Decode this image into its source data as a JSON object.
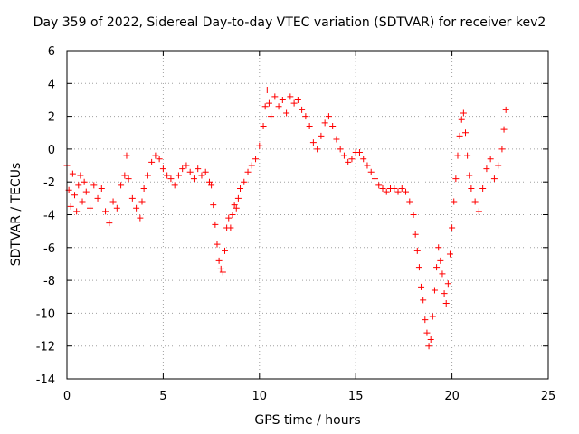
{
  "chart_data": {
    "type": "scatter",
    "title": "Day 359 of 2022, Sidereal Day-to-day VTEC variation (SDTVAR) for receiver kev2",
    "xlabel": "GPS time / hours",
    "ylabel": "SDTVAR / TECUs",
    "xlim": [
      0,
      25
    ],
    "ylim": [
      -14,
      6
    ],
    "xticks": [
      "0",
      "5",
      "10",
      "15",
      "20",
      "25"
    ],
    "yticks": [
      "6",
      "4",
      "2",
      "0",
      "-2",
      "-4",
      "-6",
      "-8",
      "-10",
      "-12",
      "-14"
    ],
    "grid": true,
    "marker": "+",
    "color": "#ff0000",
    "series": [
      {
        "name": "SDTVAR",
        "points": [
          [
            0.0,
            -1.0
          ],
          [
            0.1,
            -2.5
          ],
          [
            0.2,
            -3.5
          ],
          [
            0.3,
            -1.5
          ],
          [
            0.4,
            -2.8
          ],
          [
            0.5,
            -3.8
          ],
          [
            0.6,
            -2.2
          ],
          [
            0.7,
            -1.6
          ],
          [
            0.8,
            -3.2
          ],
          [
            0.9,
            -2.0
          ],
          [
            1.0,
            -2.6
          ],
          [
            1.2,
            -3.6
          ],
          [
            1.4,
            -2.2
          ],
          [
            1.6,
            -3.0
          ],
          [
            1.8,
            -2.4
          ],
          [
            2.0,
            -3.8
          ],
          [
            2.2,
            -4.5
          ],
          [
            2.4,
            -3.2
          ],
          [
            2.6,
            -3.6
          ],
          [
            2.8,
            -2.2
          ],
          [
            3.0,
            -1.6
          ],
          [
            3.1,
            -0.4
          ],
          [
            3.2,
            -1.8
          ],
          [
            3.4,
            -3.0
          ],
          [
            3.6,
            -3.6
          ],
          [
            3.8,
            -4.2
          ],
          [
            3.9,
            -3.2
          ],
          [
            4.0,
            -2.4
          ],
          [
            4.2,
            -1.6
          ],
          [
            4.4,
            -0.8
          ],
          [
            4.6,
            -0.4
          ],
          [
            4.8,
            -0.6
          ],
          [
            5.0,
            -1.2
          ],
          [
            5.2,
            -1.6
          ],
          [
            5.4,
            -1.8
          ],
          [
            5.6,
            -2.2
          ],
          [
            5.8,
            -1.6
          ],
          [
            6.0,
            -1.2
          ],
          [
            6.2,
            -1.0
          ],
          [
            6.4,
            -1.4
          ],
          [
            6.6,
            -1.8
          ],
          [
            6.8,
            -1.2
          ],
          [
            7.0,
            -1.6
          ],
          [
            7.2,
            -1.4
          ],
          [
            7.4,
            -2.0
          ],
          [
            7.5,
            -2.2
          ],
          [
            7.6,
            -3.4
          ],
          [
            7.7,
            -4.6
          ],
          [
            7.8,
            -5.8
          ],
          [
            7.9,
            -6.8
          ],
          [
            8.0,
            -7.3
          ],
          [
            8.1,
            -7.5
          ],
          [
            8.2,
            -6.2
          ],
          [
            8.3,
            -4.8
          ],
          [
            8.4,
            -4.2
          ],
          [
            8.5,
            -4.8
          ],
          [
            8.6,
            -4.0
          ],
          [
            8.7,
            -3.4
          ],
          [
            8.8,
            -3.6
          ],
          [
            8.9,
            -3.0
          ],
          [
            9.0,
            -2.4
          ],
          [
            9.2,
            -2.0
          ],
          [
            9.4,
            -1.4
          ],
          [
            9.6,
            -1.0
          ],
          [
            9.8,
            -0.6
          ],
          [
            10.0,
            0.2
          ],
          [
            10.2,
            1.4
          ],
          [
            10.3,
            2.6
          ],
          [
            10.4,
            3.6
          ],
          [
            10.5,
            2.8
          ],
          [
            10.6,
            2.0
          ],
          [
            10.8,
            3.2
          ],
          [
            11.0,
            2.6
          ],
          [
            11.2,
            3.0
          ],
          [
            11.4,
            2.2
          ],
          [
            11.6,
            3.2
          ],
          [
            11.8,
            2.8
          ],
          [
            12.0,
            3.0
          ],
          [
            12.2,
            2.4
          ],
          [
            12.4,
            2.0
          ],
          [
            12.6,
            1.4
          ],
          [
            12.8,
            0.4
          ],
          [
            13.0,
            0.0
          ],
          [
            13.2,
            0.8
          ],
          [
            13.4,
            1.6
          ],
          [
            13.6,
            2.0
          ],
          [
            13.8,
            1.4
          ],
          [
            14.0,
            0.6
          ],
          [
            14.2,
            0.0
          ],
          [
            14.4,
            -0.4
          ],
          [
            14.6,
            -0.8
          ],
          [
            14.8,
            -0.6
          ],
          [
            15.0,
            -0.2
          ],
          [
            15.2,
            -0.2
          ],
          [
            15.4,
            -0.6
          ],
          [
            15.6,
            -1.0
          ],
          [
            15.8,
            -1.4
          ],
          [
            16.0,
            -1.8
          ],
          [
            16.2,
            -2.2
          ],
          [
            16.4,
            -2.4
          ],
          [
            16.6,
            -2.6
          ],
          [
            16.8,
            -2.4
          ],
          [
            17.0,
            -2.4
          ],
          [
            17.2,
            -2.6
          ],
          [
            17.4,
            -2.4
          ],
          [
            17.6,
            -2.6
          ],
          [
            17.8,
            -3.2
          ],
          [
            18.0,
            -4.0
          ],
          [
            18.1,
            -5.2
          ],
          [
            18.2,
            -6.2
          ],
          [
            18.3,
            -7.2
          ],
          [
            18.4,
            -8.4
          ],
          [
            18.5,
            -9.2
          ],
          [
            18.6,
            -10.4
          ],
          [
            18.7,
            -11.2
          ],
          [
            18.8,
            -12.0
          ],
          [
            18.9,
            -11.6
          ],
          [
            19.0,
            -10.2
          ],
          [
            19.1,
            -8.6
          ],
          [
            19.2,
            -7.2
          ],
          [
            19.3,
            -6.0
          ],
          [
            19.4,
            -6.8
          ],
          [
            19.5,
            -7.6
          ],
          [
            19.6,
            -8.8
          ],
          [
            19.7,
            -9.4
          ],
          [
            19.8,
            -8.2
          ],
          [
            19.9,
            -6.4
          ],
          [
            20.0,
            -4.8
          ],
          [
            20.1,
            -3.2
          ],
          [
            20.2,
            -1.8
          ],
          [
            20.3,
            -0.4
          ],
          [
            20.4,
            0.8
          ],
          [
            20.5,
            1.8
          ],
          [
            20.6,
            2.2
          ],
          [
            20.7,
            1.0
          ],
          [
            20.8,
            -0.4
          ],
          [
            20.9,
            -1.6
          ],
          [
            21.0,
            -2.4
          ],
          [
            21.2,
            -3.2
          ],
          [
            21.4,
            -3.8
          ],
          [
            21.6,
            -2.4
          ],
          [
            21.8,
            -1.2
          ],
          [
            22.0,
            -0.6
          ],
          [
            22.2,
            -1.8
          ],
          [
            22.4,
            -1.0
          ],
          [
            22.6,
            0.0
          ],
          [
            22.7,
            1.2
          ],
          [
            22.8,
            2.4
          ]
        ]
      }
    ]
  }
}
